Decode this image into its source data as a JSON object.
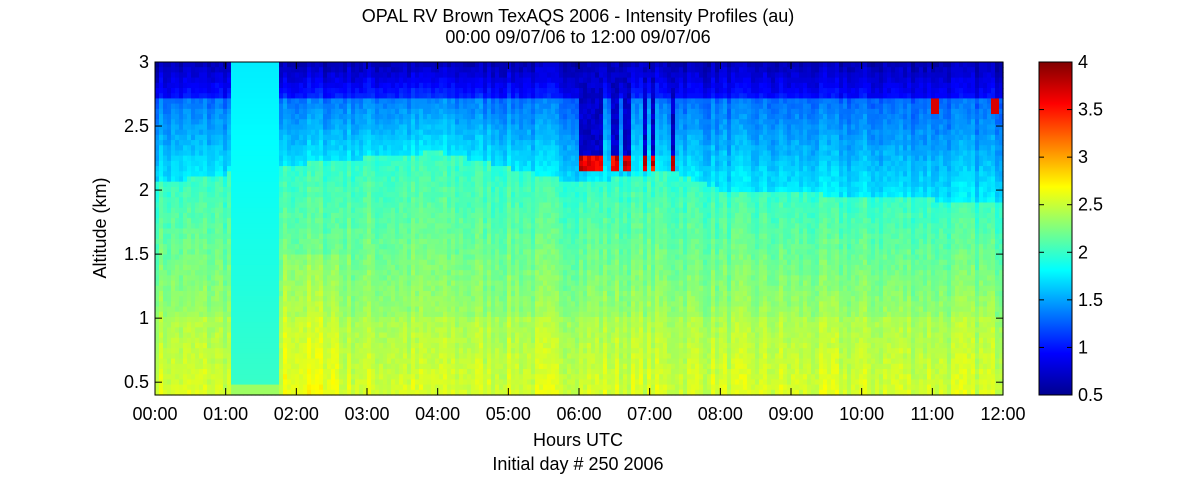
{
  "chart_data": {
    "type": "heatmap",
    "title": "OPAL RV Brown TexAQS 2006 - Intensity Profiles (au)",
    "subtitle": "00:00 09/07/06 to 12:00 09/07/06",
    "xlabel": "Hours UTC",
    "xlabel_note": "Initial day # 250  2006",
    "ylabel": "Altitude (km)",
    "x_range_hours": [
      0,
      12
    ],
    "ylim_km": [
      0.4,
      3.0
    ],
    "x_ticks": [
      "00:00",
      "01:00",
      "02:00",
      "03:00",
      "04:00",
      "05:00",
      "06:00",
      "07:00",
      "08:00",
      "09:00",
      "10:00",
      "11:00",
      "12:00"
    ],
    "y_ticks": [
      "0.5",
      "1",
      "1.5",
      "2",
      "2.5",
      "3"
    ],
    "colorbar": {
      "colormap": "jet",
      "range": [
        0.5,
        4
      ],
      "ticks": [
        "0.5",
        "1",
        "1.5",
        "2",
        "2.5",
        "3",
        "3.5",
        "4"
      ]
    },
    "features": {
      "uniform_gap_hours": [
        1.08,
        1.77
      ],
      "boundary_layer_top_km": {
        "hours": [
          0,
          2,
          4,
          6,
          7.3,
          8,
          10,
          12
        ],
        "km": [
          2.05,
          2.2,
          2.3,
          2.05,
          2.15,
          2.0,
          1.95,
          1.9
        ]
      },
      "cloud_columns_hours": [
        6.05,
        6.17,
        6.27,
        6.5,
        6.67,
        6.93,
        7.05,
        7.32
      ],
      "cloud_base_km": 2.2,
      "upper_cloud_patches": [
        {
          "hour": 11.88,
          "km": 2.65
        },
        {
          "hour": 11.05,
          "km": 2.65
        }
      ]
    }
  }
}
